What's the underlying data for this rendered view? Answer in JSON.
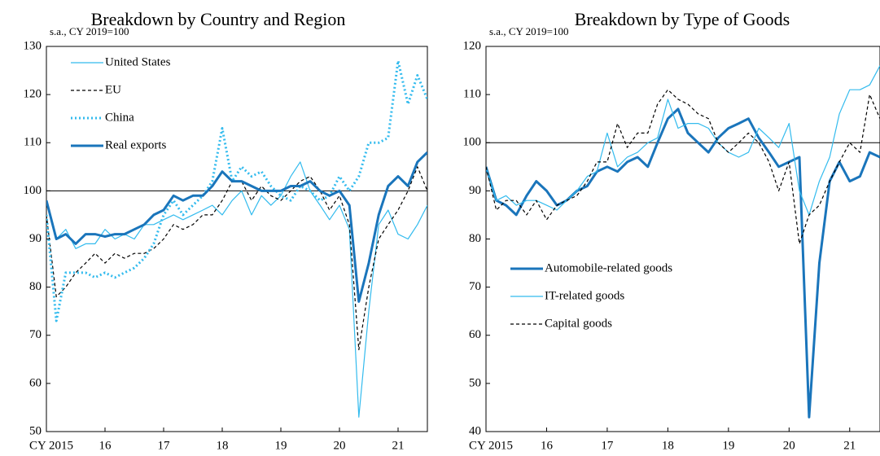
{
  "chart_data": [
    {
      "type": "line",
      "title": "Breakdown by Country and Region",
      "ylabel": "s.a., CY 2019=100",
      "xlim": [
        2015,
        2021.5
      ],
      "ylim": [
        50,
        130
      ],
      "yticks": [
        50,
        60,
        70,
        80,
        90,
        100,
        110,
        120,
        130
      ],
      "xticks": [
        {
          "value": 2015,
          "label": "CY 2015"
        },
        {
          "value": 2016,
          "label": "16"
        },
        {
          "value": 2017,
          "label": "17"
        },
        {
          "value": 2018,
          "label": "18"
        },
        {
          "value": 2019,
          "label": "19"
        },
        {
          "value": 2020,
          "label": "20"
        },
        {
          "value": 2021,
          "label": "21"
        }
      ],
      "hline": 100,
      "legend": "upper left",
      "x": [
        2015,
        2015.17,
        2015.33,
        2015.5,
        2015.67,
        2015.83,
        2016,
        2016.17,
        2016.33,
        2016.5,
        2016.67,
        2016.83,
        2017,
        2017.17,
        2017.33,
        2017.5,
        2017.67,
        2017.83,
        2018,
        2018.17,
        2018.33,
        2018.5,
        2018.67,
        2018.83,
        2019,
        2019.17,
        2019.33,
        2019.5,
        2019.67,
        2019.83,
        2020,
        2020.17,
        2020.33,
        2020.5,
        2020.67,
        2020.83,
        2021,
        2021.17,
        2021.33,
        2021.5
      ],
      "series": [
        {
          "name": "United States",
          "color": "#33bbee",
          "style": "solid",
          "weight": "thin",
          "values": [
            98,
            90,
            92,
            88,
            89,
            89,
            92,
            90,
            91,
            90,
            93,
            93,
            94,
            95,
            94,
            95,
            96,
            97,
            95,
            98,
            100,
            95,
            99,
            97,
            99,
            103,
            106,
            100,
            97,
            94,
            97,
            92,
            53,
            75,
            93,
            96,
            91,
            90,
            93,
            97
          ]
        },
        {
          "name": "EU",
          "color": "#000000",
          "style": "dashed",
          "weight": "thin",
          "values": [
            95,
            78,
            80,
            83,
            85,
            87,
            85,
            87,
            86,
            87,
            87,
            88,
            90,
            93,
            92,
            93,
            95,
            95,
            98,
            102,
            102,
            98,
            101,
            99,
            98,
            100,
            102,
            103,
            100,
            96,
            99,
            93,
            67,
            80,
            90,
            93,
            96,
            100,
            105,
            100
          ]
        },
        {
          "name": "China",
          "color": "#33bbee",
          "style": "dotted",
          "weight": "thick",
          "values": [
            95,
            73,
            83,
            83,
            83,
            82,
            83,
            82,
            83,
            84,
            86,
            89,
            95,
            98,
            95,
            97,
            99,
            102,
            113,
            102,
            105,
            103,
            104,
            101,
            99,
            98,
            101,
            100,
            98,
            99,
            103,
            100,
            103,
            110,
            110,
            111,
            127,
            118,
            124,
            119
          ]
        },
        {
          "name": "Real exports",
          "color": "#1a75bb",
          "style": "solid",
          "weight": "thick",
          "values": [
            98,
            90,
            91,
            89,
            91,
            91,
            90.5,
            91,
            91,
            92,
            93,
            95,
            96,
            99,
            98,
            99,
            99,
            101,
            104,
            102,
            102,
            101,
            100,
            100,
            100,
            101,
            101,
            102,
            100,
            99,
            100,
            97,
            77,
            85,
            95,
            101,
            103,
            101,
            106,
            108
          ]
        }
      ]
    },
    {
      "type": "line",
      "title": "Breakdown by Type of Goods",
      "ylabel": "s.a., CY 2019=100",
      "xlim": [
        2015,
        2021.5
      ],
      "ylim": [
        40,
        120
      ],
      "yticks": [
        40,
        50,
        60,
        70,
        80,
        90,
        100,
        110,
        120
      ],
      "xticks": [
        {
          "value": 2015,
          "label": "CY 2015"
        },
        {
          "value": 2016,
          "label": "16"
        },
        {
          "value": 2017,
          "label": "17"
        },
        {
          "value": 2018,
          "label": "18"
        },
        {
          "value": 2019,
          "label": "19"
        },
        {
          "value": 2020,
          "label": "20"
        },
        {
          "value": 2021,
          "label": "21"
        }
      ],
      "hline": 100,
      "legend": "lower left",
      "x": [
        2015,
        2015.17,
        2015.33,
        2015.5,
        2015.67,
        2015.83,
        2016,
        2016.17,
        2016.33,
        2016.5,
        2016.67,
        2016.83,
        2017,
        2017.17,
        2017.33,
        2017.5,
        2017.67,
        2017.83,
        2018,
        2018.17,
        2018.33,
        2018.5,
        2018.67,
        2018.83,
        2019,
        2019.17,
        2019.33,
        2019.5,
        2019.67,
        2019.83,
        2020,
        2020.17,
        2020.33,
        2020.5,
        2020.67,
        2020.83,
        2021,
        2021.17,
        2021.33,
        2021.5
      ],
      "series": [
        {
          "name": "Automobile-related goods",
          "color": "#1a75bb",
          "style": "solid",
          "weight": "thick",
          "values": [
            95,
            88,
            87,
            85,
            89,
            92,
            90,
            87,
            88,
            90,
            91,
            94,
            95,
            94,
            96,
            97,
            95,
            100,
            105,
            107,
            102,
            100,
            98,
            101,
            103,
            104,
            105,
            101,
            98,
            95,
            96,
            97,
            43,
            75,
            92,
            96,
            92,
            93,
            98,
            97
          ]
        },
        {
          "name": "IT-related goods",
          "color": "#33bbee",
          "style": "solid",
          "weight": "thin",
          "values": [
            95,
            88,
            89,
            87,
            88,
            88,
            87,
            86,
            88,
            90,
            93,
            94,
            102,
            95,
            97,
            98,
            100,
            101,
            109,
            103,
            104,
            104,
            103,
            100,
            98,
            97,
            98,
            103,
            101,
            99,
            104,
            90,
            85,
            92,
            97,
            106,
            111,
            111,
            112,
            116
          ]
        },
        {
          "name": "Capital goods",
          "color": "#000000",
          "style": "dashed",
          "weight": "thin",
          "values": [
            95,
            86,
            88,
            88,
            85,
            88,
            84,
            87,
            88,
            89,
            92,
            96,
            96,
            104,
            99,
            102,
            102,
            108,
            111,
            109,
            108,
            106,
            105,
            100,
            98,
            100,
            102,
            100,
            96,
            90,
            96,
            79,
            85,
            87,
            92,
            96,
            100,
            98,
            110,
            105
          ]
        }
      ]
    }
  ]
}
